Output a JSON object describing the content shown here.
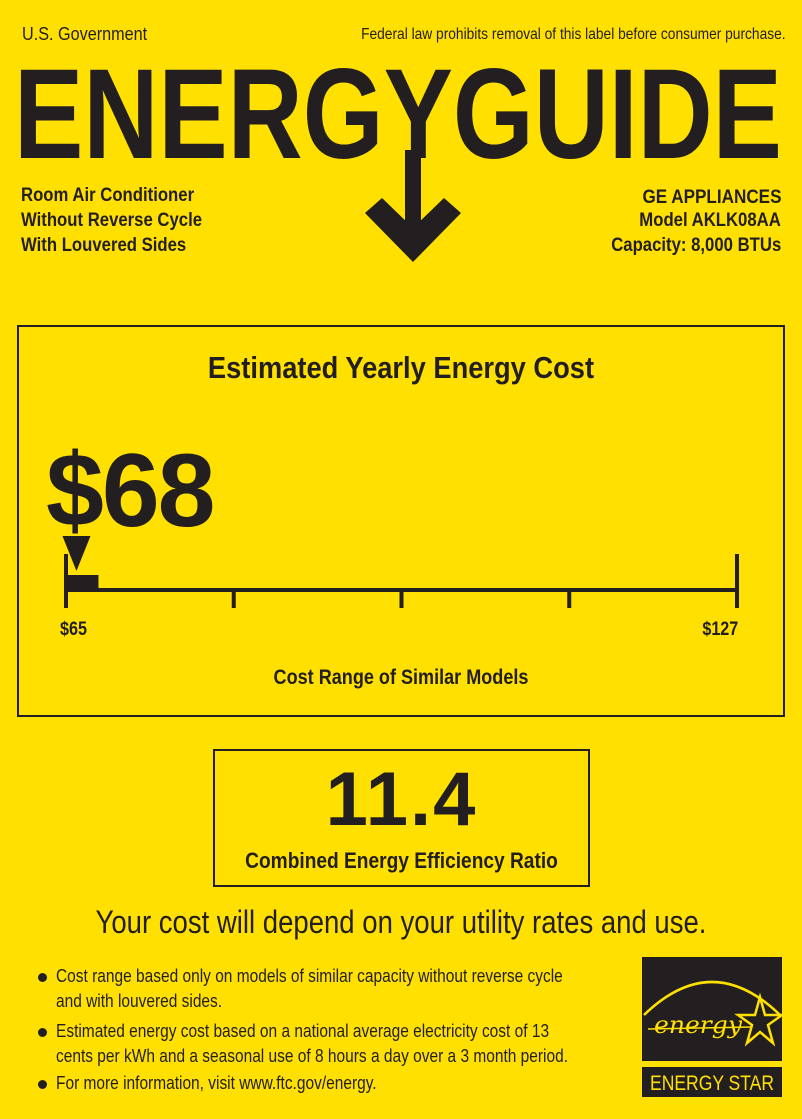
{
  "header": {
    "government": "U.S. Government",
    "legal_notice": "Federal law prohibits removal of this label before consumer purchase.",
    "title": "ENERGYGUIDE"
  },
  "product": {
    "lines": [
      "Room Air Conditioner",
      "Without Reverse Cycle",
      "With Louvered Sides"
    ]
  },
  "manufacturer": {
    "name": "GE APPLIANCES",
    "model": "Model AKLK08AA",
    "capacity": "Capacity: 8,000 BTUs"
  },
  "cost": {
    "heading": "Estimated Yearly Energy Cost",
    "value": "$68",
    "value_number": 68,
    "range_min_label": "$65",
    "range_max_label": "$127",
    "range_min": 65,
    "range_max": 127,
    "range_caption": "Cost Range of Similar Models"
  },
  "efficiency": {
    "value": "11.4",
    "label": "Combined Energy Efficiency Ratio"
  },
  "disclaimer": "Your cost will depend on your utility rates and use.",
  "notes": [
    {
      "line1": "Cost range based only on models of similar capacity without reverse cycle",
      "line2": "and with louvered sides."
    },
    {
      "line1": "Estimated energy cost based on a national average electricity cost of 13",
      "line2": "cents per kWh and a seasonal use of 8 hours a day over a 3 month period."
    },
    {
      "line1": "For more information, visit www.ftc.gov/energy.",
      "line2": ""
    }
  ],
  "energy_star": {
    "script": "energy",
    "label": "ENERGY STAR"
  },
  "colors": {
    "background": "#FFE000",
    "ink": "#231f20"
  }
}
